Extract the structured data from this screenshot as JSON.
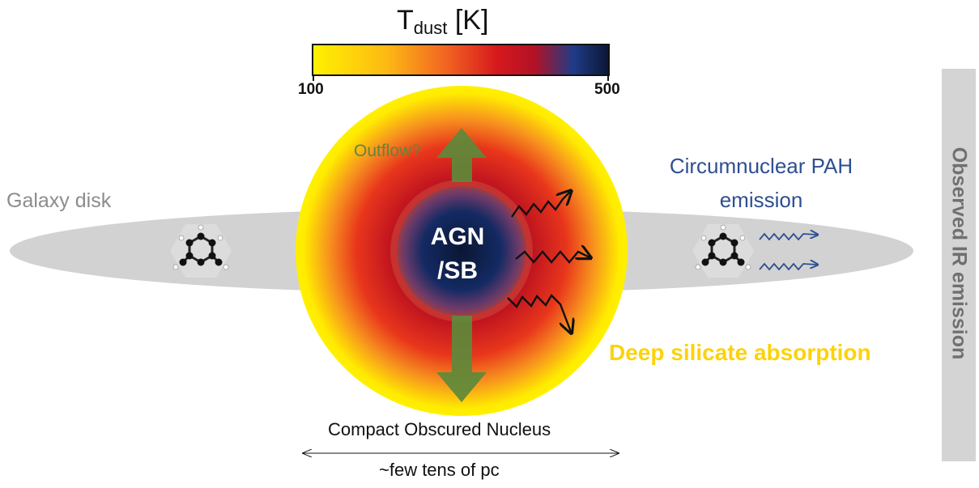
{
  "colorbar": {
    "title_main": "T",
    "title_sub": "dust",
    "title_unit": " [K]",
    "min_label": "100",
    "max_label": "500",
    "colors": [
      "#fff200",
      "#fdb913",
      "#f26522",
      "#d7191c",
      "#b11226",
      "#1f3c88",
      "#0b1633"
    ]
  },
  "labels": {
    "galaxy_disk": "Galaxy disk",
    "outflow": "Outflow?",
    "agn": "AGN /SB",
    "circumnuclear": "Circumnuclear PAH emission",
    "deep_silicate": "Deep silicate absorption",
    "compact_nucleus": "Compact Obscured Nucleus",
    "scale": "~few tens of pc",
    "observed_ir": "Observed IR emission"
  },
  "colors": {
    "disk": "#d0d0d0",
    "outflow_arrow": "#5e8a3a",
    "pah_waves": "#2e4f91",
    "silicate_text": "#fdd20a",
    "core": "#0b1633"
  },
  "icons": [
    "molecule-icon-left",
    "molecule-icon-right",
    "wave-arrow-icon"
  ]
}
